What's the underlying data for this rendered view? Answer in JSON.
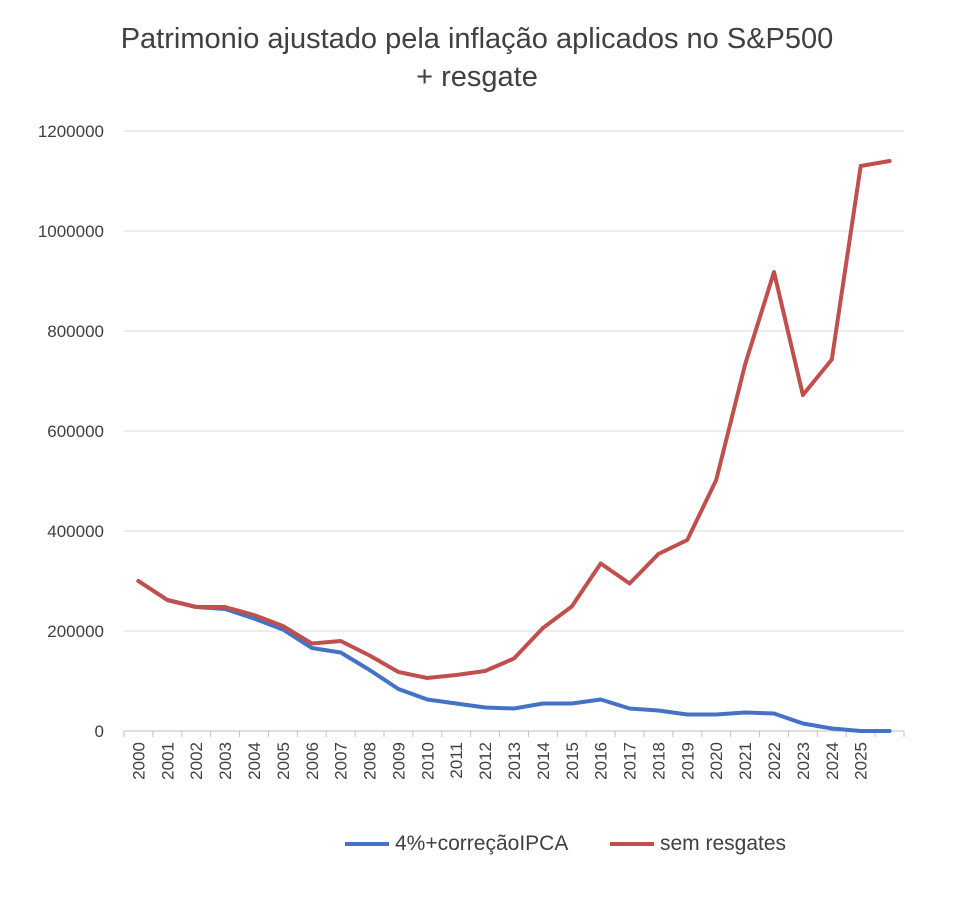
{
  "chart_data": {
    "type": "line",
    "title_lines": [
      "Patrimonio ajustado pela inflação aplicados no S&P500",
      "+ resgate"
    ],
    "xlabel": "",
    "ylabel": "",
    "ylim": [
      0,
      1200000
    ],
    "yticks": [
      0,
      200000,
      400000,
      600000,
      800000,
      1000000,
      1200000
    ],
    "ytick_labels": [
      "0",
      "200000",
      "400000",
      "600000",
      "800000",
      "1000000",
      "1200000"
    ],
    "x": [
      "2000",
      "2001",
      "2002",
      "2003",
      "2004",
      "2005",
      "2006",
      "2007",
      "2008",
      "2009",
      "2010",
      "2011",
      "2012",
      "2013",
      "2014",
      "2015",
      "2016",
      "2017",
      "2018",
      "2019",
      "2020",
      "2021",
      "2022",
      "2023",
      "2024",
      "2025",
      ""
    ],
    "grid": true,
    "legend_position": "bottom",
    "series": [
      {
        "name": "4%+correçãoIPCA",
        "color": "#4472c4",
        "values": [
          300000,
          262000,
          248000,
          244000,
          225000,
          203000,
          166000,
          157000,
          122000,
          84000,
          63000,
          55000,
          47000,
          45000,
          55000,
          55000,
          63000,
          45000,
          41000,
          33000,
          33000,
          37000,
          35000,
          15000,
          5000,
          0,
          0
        ]
      },
      {
        "name": "sem resgates",
        "color": "#c0504d",
        "values": [
          300000,
          262000,
          248000,
          248000,
          232000,
          210000,
          175000,
          180000,
          151000,
          118000,
          106000,
          112000,
          120000,
          145000,
          206000,
          249000,
          335000,
          295000,
          354000,
          382000,
          502000,
          733000,
          918000,
          672000,
          743000,
          1130000,
          1140000
        ]
      }
    ]
  }
}
